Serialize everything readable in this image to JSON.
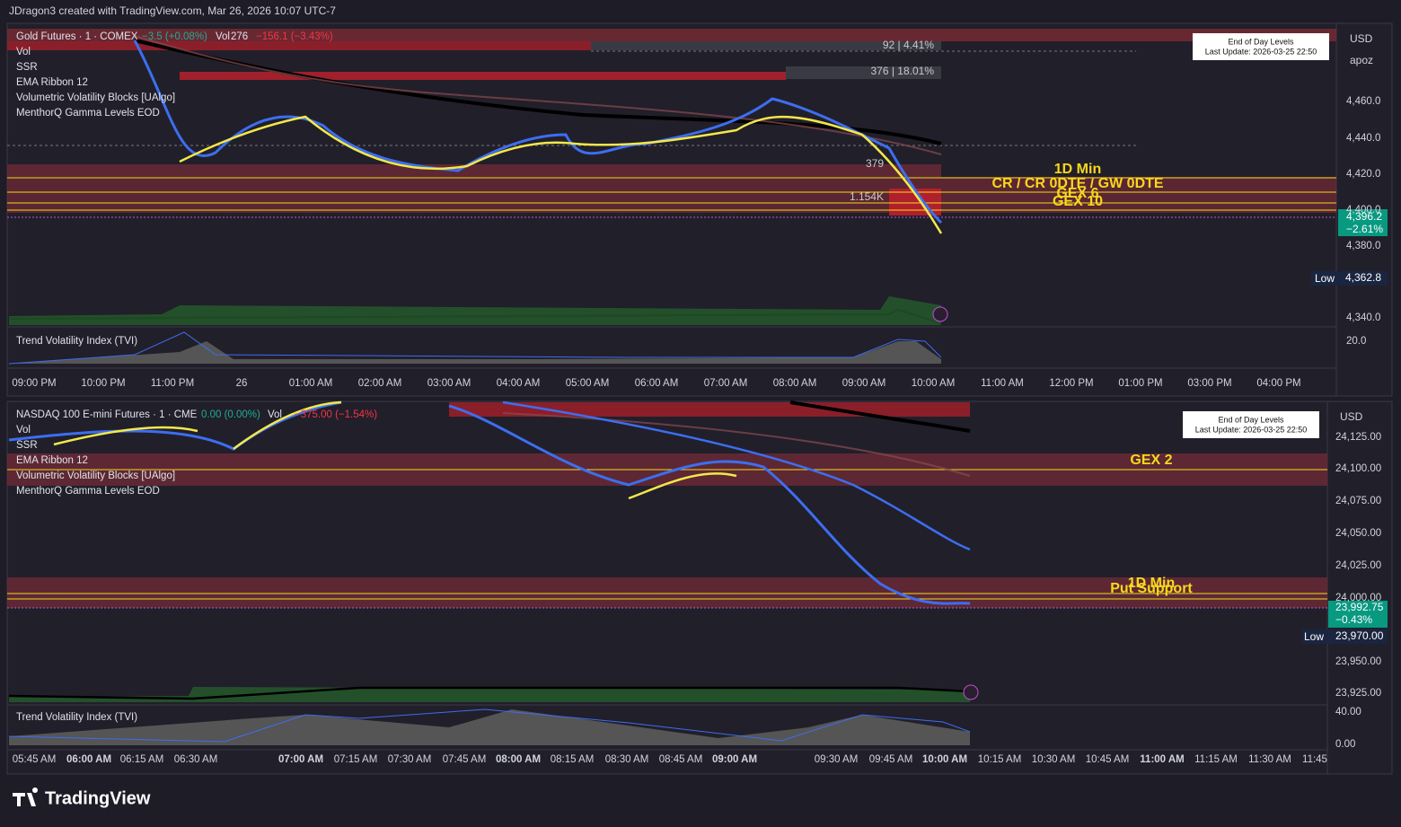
{
  "header": "JDragon3 created with TradingView.com, Mar 26, 2026 10:07 UTC-7",
  "gold": {
    "legend": {
      "symbol": "Gold Futures · 1 · COMEX",
      "change": "−3.5 (+0.08%)",
      "vol_label": "Vol",
      "vol_value": "276",
      "vol_change": "−156.1 (−3.43%)",
      "indicators": [
        "Vol",
        "SSR",
        "EMA Ribbon 12",
        "Volumetric Volatility Blocks [UAlgo]",
        "MenthorQ Gamma Levels EOD"
      ]
    },
    "blocks": [
      "92 | 4.41%",
      "376 | 18.01%",
      "379",
      "1.154K"
    ],
    "levels": [
      "1D Min",
      "CR / CR 0DTE / GW 0DTE",
      "GEX 6",
      "GEX 10"
    ],
    "eod_box": [
      "End of Day Levels",
      "Last Update: 2026-03-25 22:50"
    ],
    "currency": "USD",
    "unit": "apoz",
    "price_axis": [
      "4,460.0",
      "4,440.0",
      "4,420.0",
      "4,400.0",
      "4,380.0",
      "4,340.0"
    ],
    "last_price": "4,396.2",
    "last_change": "−2.61%",
    "low_label": "Low",
    "low_price": "4,362.8",
    "tvi": "Trend Volatility Index (TVI)",
    "tvi_axis": "20.0",
    "time_axis": [
      "09:00 PM",
      "10:00 PM",
      "11:00 PM",
      "26",
      "01:00 AM",
      "02:00 AM",
      "03:00 AM",
      "04:00 AM",
      "05:00 AM",
      "06:00 AM",
      "07:00 AM",
      "08:00 AM",
      "09:00 AM",
      "10:00 AM",
      "11:00 AM",
      "12:00 PM",
      "01:00 PM",
      "03:00 PM",
      "04:00 PM"
    ]
  },
  "nasdaq": {
    "legend": {
      "symbol": "NASDAQ 100 E-mini Futures · 1 · CME",
      "change": "0.00 (0.00%)",
      "vol_label": "Vol",
      "vol_change": "−375.00 (−1.54%)",
      "indicators": [
        "Vol",
        "SSR",
        "EMA Ribbon 12",
        "Volumetric Volatility Blocks [UAlgo]",
        "MenthorQ Gamma Levels EOD"
      ]
    },
    "levels": [
      "GEX 2",
      "1D Min",
      "Put Support"
    ],
    "eod_box": [
      "End of Day Levels",
      "Last Update: 2026-03-25 22:50"
    ],
    "currency": "USD",
    "price_axis": [
      "24,125.00",
      "24,100.00",
      "24,075.00",
      "24,050.00",
      "24,025.00",
      "24,000.00",
      "23,950.00",
      "23,925.00"
    ],
    "last_price": "23,992.75",
    "last_change": "−0.43%",
    "low_label": "Low",
    "low_price": "23,970.00",
    "tvi": "Trend Volatility Index (TVI)",
    "tvi_axis": [
      "40.00",
      "0.00"
    ],
    "time_axis": [
      "05:45 AM",
      "06:00 AM",
      "06:15 AM",
      "06:30 AM",
      "07:00 AM",
      "07:15 AM",
      "07:30 AM",
      "07:45 AM",
      "08:00 AM",
      "08:15 AM",
      "08:30 AM",
      "08:45 AM",
      "09:00 AM",
      "09:30 AM",
      "09:45 AM",
      "10:00 AM",
      "10:15 AM",
      "10:30 AM",
      "10:45 AM",
      "11:00 AM",
      "11:15 AM",
      "11:30 AM",
      "11:45"
    ]
  },
  "footer": "TradingView"
}
